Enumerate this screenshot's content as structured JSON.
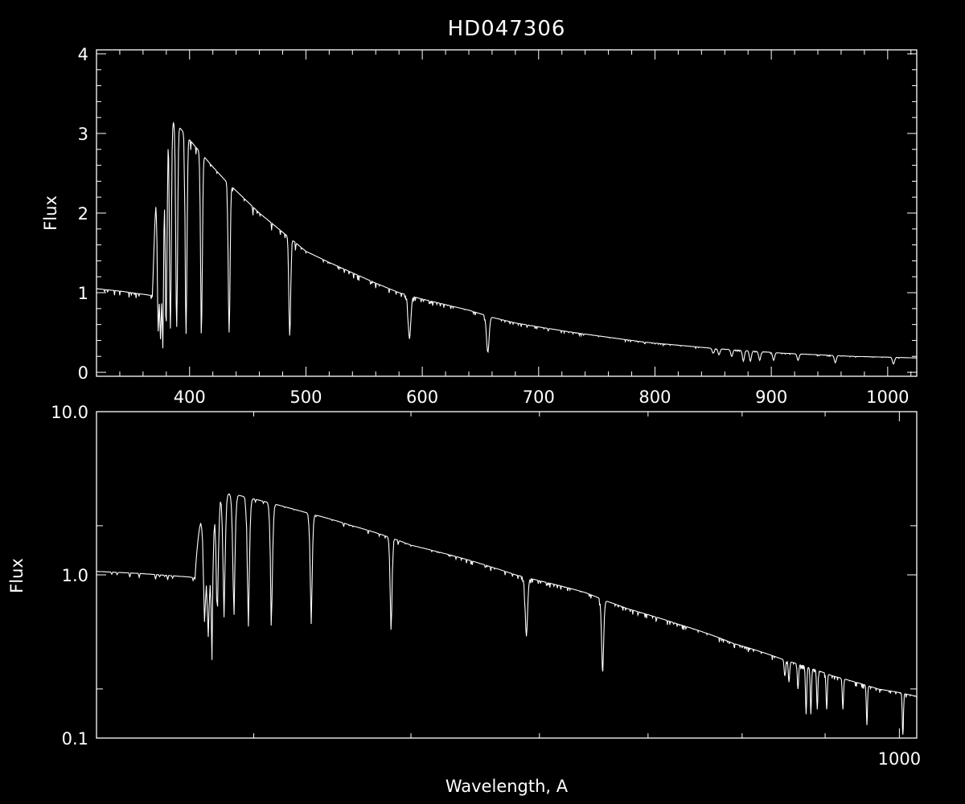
{
  "chart_data": {
    "title": "HD047306",
    "foreground": "#ffffff",
    "background": "#000000",
    "panels": [
      {
        "type": "line",
        "x_scale": "linear",
        "y_scale": "linear",
        "xlim": [
          320,
          1025
        ],
        "ylim": [
          -0.05,
          4.05
        ],
        "xlabel": "",
        "ylabel": "Flux",
        "x_major_ticks": [
          400,
          500,
          600,
          700,
          800,
          900,
          1000
        ],
        "x_tick_labels": [
          "400",
          "500",
          "600",
          "700",
          "800",
          "900",
          "1000"
        ],
        "y_major_ticks": [
          0,
          1,
          2,
          3,
          4
        ],
        "y_tick_labels": [
          "0",
          "1",
          "2",
          "3",
          "4"
        ]
      },
      {
        "type": "line",
        "x_scale": "log",
        "y_scale": "log",
        "xlim": [
          320,
          1025
        ],
        "ylim": [
          0.1,
          10.0
        ],
        "xlabel": "Wavelength, A",
        "ylabel": "Flux",
        "x_major_ticks": [
          1000
        ],
        "x_tick_labels": [
          "1000"
        ],
        "y_major_ticks": [
          0.1,
          1.0,
          10.0
        ],
        "y_tick_labels": [
          "0.1",
          "1.0",
          "10.0"
        ]
      }
    ],
    "continuum": [
      [
        320,
        1.05
      ],
      [
        340,
        1.02
      ],
      [
        355,
        0.99
      ],
      [
        365,
        0.97
      ],
      [
        368,
        0.96
      ],
      [
        370,
        1.8
      ],
      [
        372,
        2.5
      ],
      [
        375,
        2.9
      ],
      [
        380,
        3.12
      ],
      [
        385,
        3.16
      ],
      [
        390,
        3.1
      ],
      [
        400,
        2.92
      ],
      [
        410,
        2.75
      ],
      [
        420,
        2.58
      ],
      [
        430,
        2.42
      ],
      [
        440,
        2.28
      ],
      [
        450,
        2.14
      ],
      [
        460,
        2.0
      ],
      [
        470,
        1.88
      ],
      [
        480,
        1.76
      ],
      [
        490,
        1.64
      ],
      [
        500,
        1.52
      ],
      [
        520,
        1.38
      ],
      [
        540,
        1.25
      ],
      [
        560,
        1.12
      ],
      [
        580,
        1.0
      ],
      [
        600,
        0.92
      ],
      [
        620,
        0.85
      ],
      [
        640,
        0.78
      ],
      [
        660,
        0.69
      ],
      [
        680,
        0.62
      ],
      [
        700,
        0.57
      ],
      [
        730,
        0.5
      ],
      [
        760,
        0.44
      ],
      [
        790,
        0.38
      ],
      [
        820,
        0.34
      ],
      [
        850,
        0.3
      ],
      [
        880,
        0.27
      ],
      [
        910,
        0.24
      ],
      [
        940,
        0.22
      ],
      [
        970,
        0.2
      ],
      [
        1000,
        0.19
      ],
      [
        1025,
        0.18
      ]
    ],
    "absorption_lines": [
      {
        "x": 373.0,
        "depth": 0.6
      },
      {
        "x": 375.0,
        "depth": 0.58
      },
      {
        "x": 377.0,
        "depth": 0.56
      },
      {
        "x": 379.8,
        "depth": 0.55
      },
      {
        "x": 383.5,
        "depth": 0.55
      },
      {
        "x": 388.9,
        "depth": 0.55
      },
      {
        "x": 397.0,
        "depth": 0.55
      },
      {
        "x": 410.2,
        "depth": 0.55
      },
      {
        "x": 434.0,
        "depth": 0.5
      },
      {
        "x": 486.1,
        "depth": 0.45
      },
      {
        "x": 589.0,
        "depth": 0.42
      },
      {
        "x": 656.3,
        "depth": 0.25
      },
      {
        "x": 850.0,
        "depth": 0.24
      },
      {
        "x": 855.0,
        "depth": 0.22
      },
      {
        "x": 866.0,
        "depth": 0.2
      },
      {
        "x": 876.0,
        "depth": 0.14
      },
      {
        "x": 882.0,
        "depth": 0.14
      },
      {
        "x": 890.0,
        "depth": 0.15
      },
      {
        "x": 902.0,
        "depth": 0.15
      },
      {
        "x": 923.0,
        "depth": 0.15
      },
      {
        "x": 955.0,
        "depth": 0.12
      },
      {
        "x": 1005.0,
        "depth": 0.1
      }
    ]
  }
}
